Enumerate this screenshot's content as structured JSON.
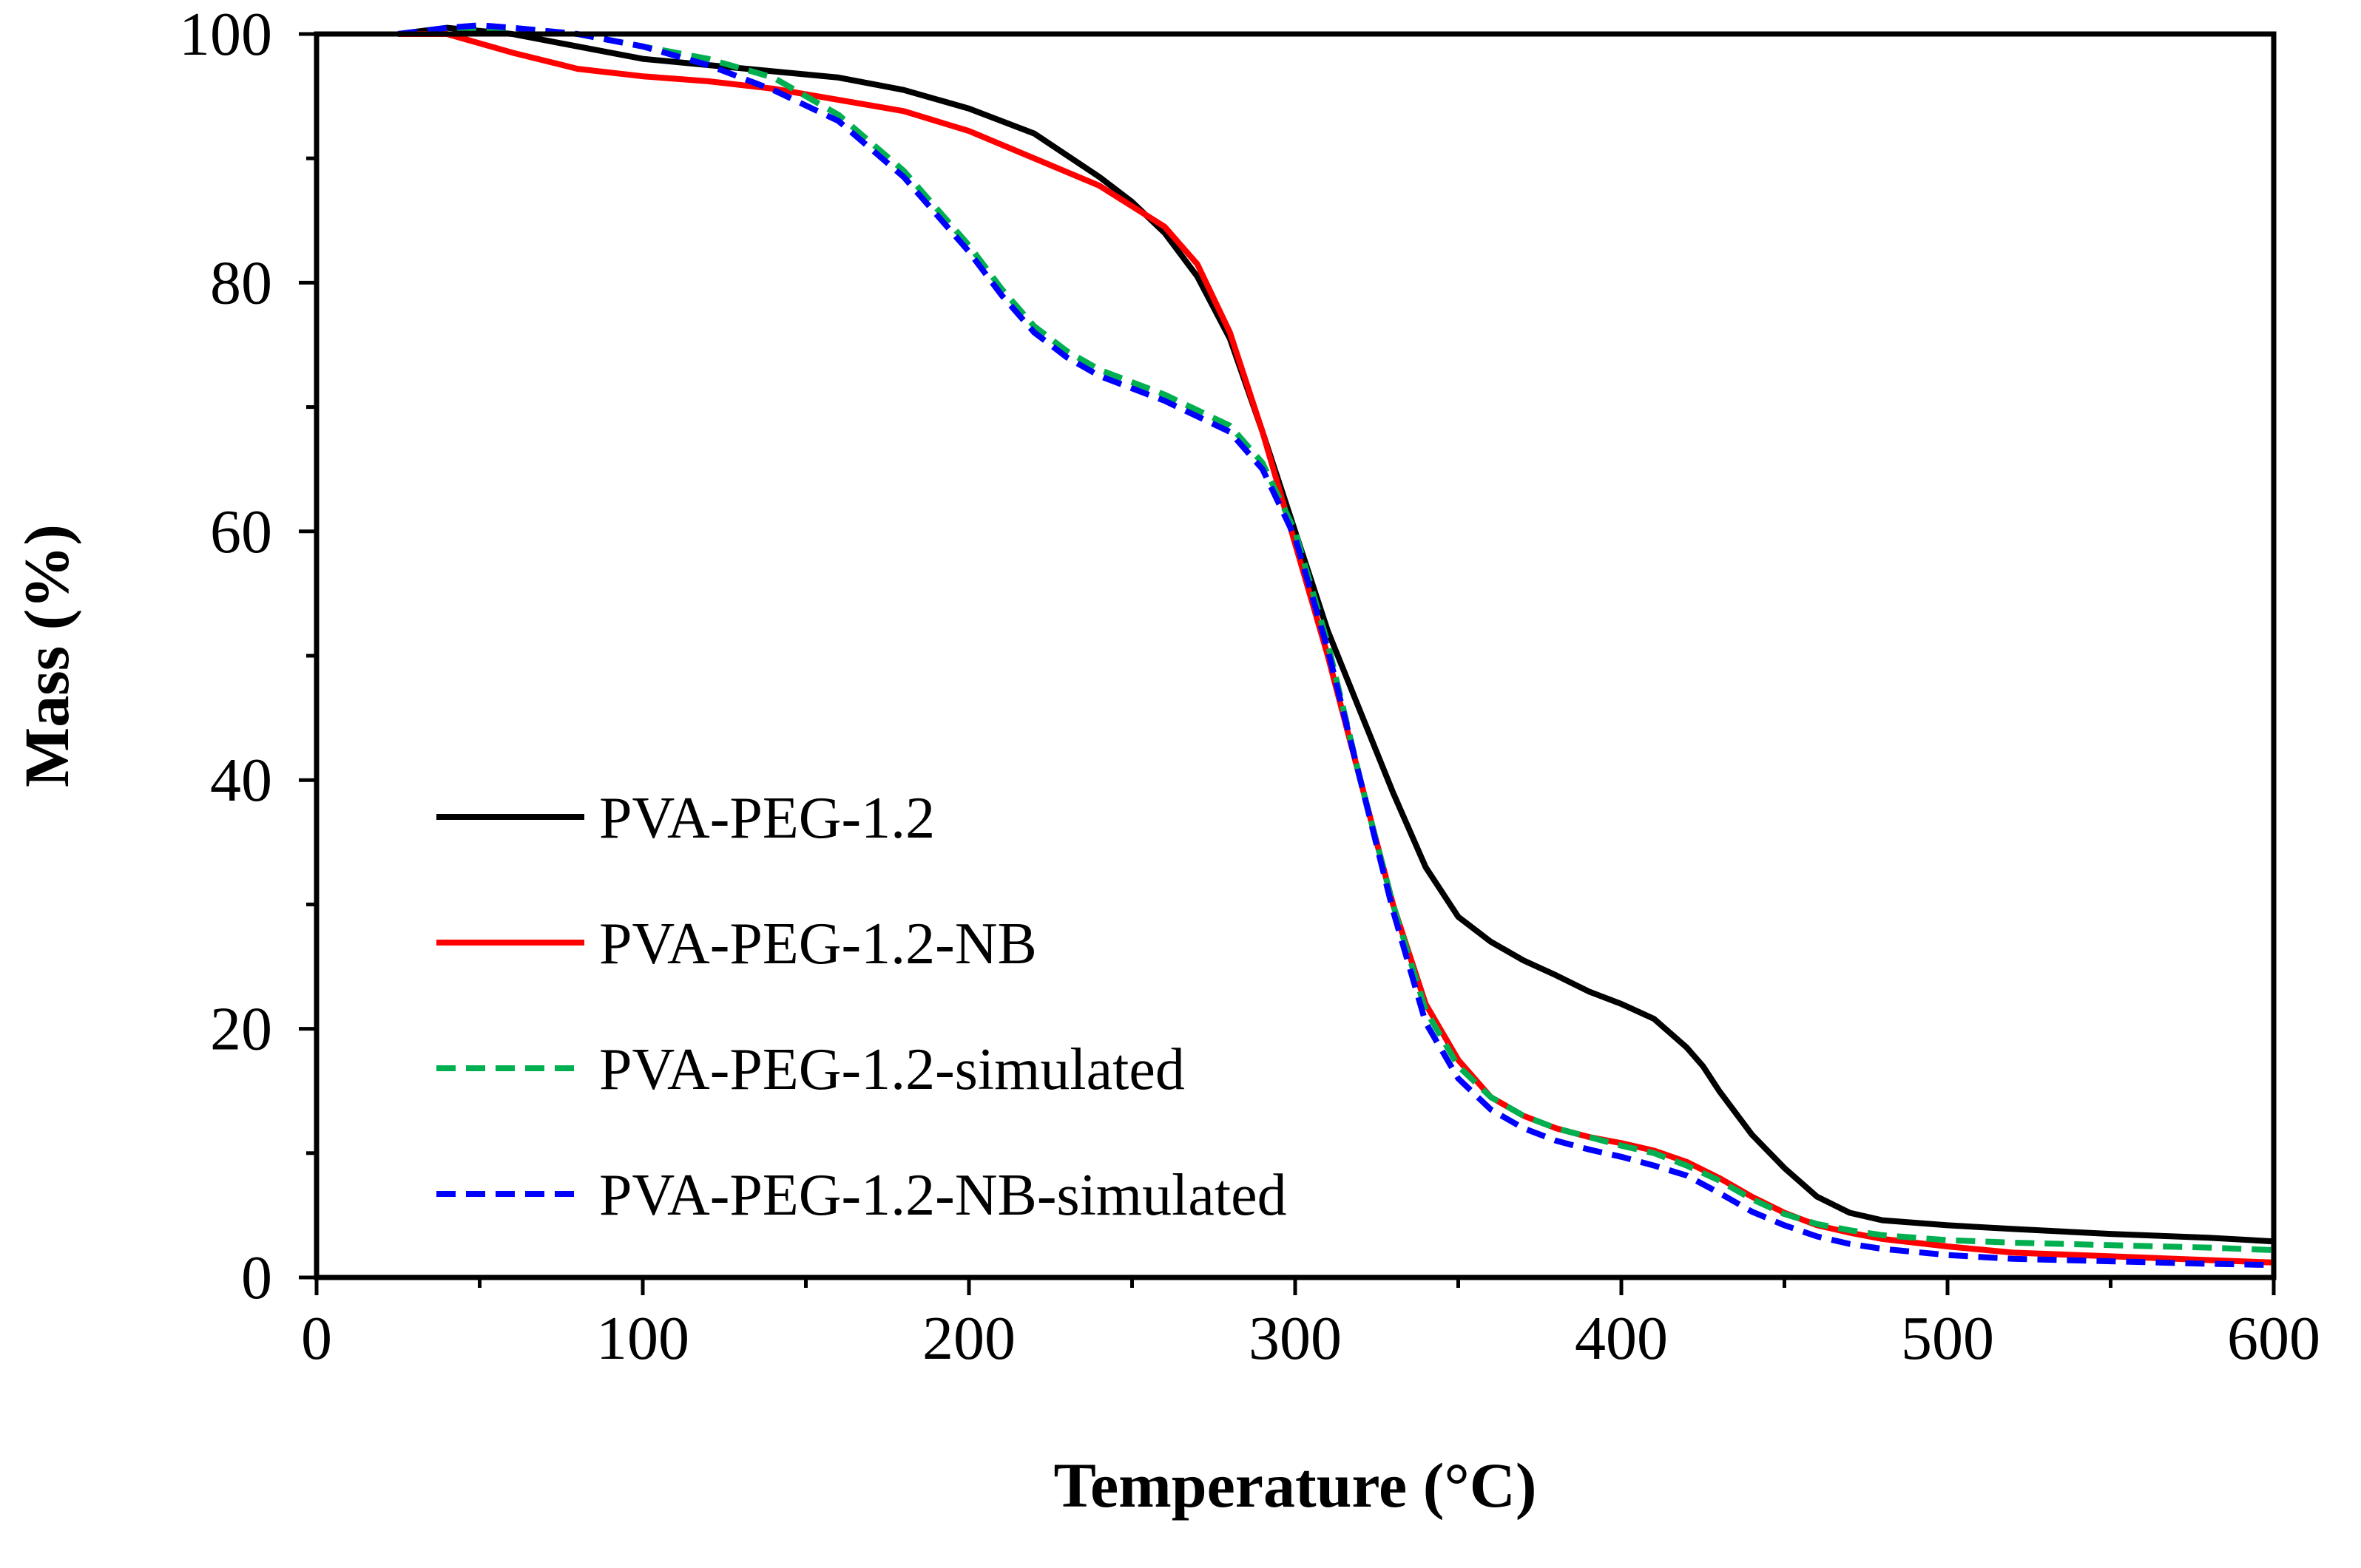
{
  "chart_data": {
    "type": "line",
    "title": "",
    "xlabel": "Temperature (°C)",
    "ylabel": "Mass (%)",
    "xlim": [
      0,
      600
    ],
    "ylim": [
      0,
      100
    ],
    "xticks": [
      0,
      100,
      200,
      300,
      400,
      500,
      600
    ],
    "yticks": [
      0,
      20,
      40,
      60,
      80,
      100
    ],
    "xticks_labels": [
      "0",
      "100",
      "200",
      "300",
      "400",
      "500",
      "600"
    ],
    "yticks_labels": [
      "0",
      "20",
      "40",
      "60",
      "80",
      "100"
    ],
    "grid": false,
    "legend_position": "lower-left",
    "series": [
      {
        "name": "PVA-PEG-1.2",
        "color": "#000000",
        "style": "solid",
        "x": [
          25,
          40,
          60,
          80,
          100,
          120,
          140,
          160,
          180,
          200,
          220,
          240,
          250,
          260,
          270,
          280,
          290,
          300,
          310,
          320,
          330,
          340,
          350,
          360,
          370,
          380,
          390,
          400,
          410,
          420,
          425,
          430,
          440,
          450,
          460,
          470,
          480,
          500,
          520,
          550,
          580,
          600
        ],
        "y": [
          100,
          100.5,
          100,
          99,
          98,
          97.5,
          97,
          96.5,
          95.5,
          94,
          92,
          88.5,
          86.5,
          84,
          80.5,
          75.5,
          68,
          60,
          52,
          45.5,
          39,
          33,
          29,
          27,
          25.5,
          24.3,
          23,
          22,
          20.8,
          18.5,
          17,
          15,
          11.5,
          8.8,
          6.5,
          5.2,
          4.6,
          4.2,
          3.9,
          3.5,
          3.2,
          2.9
        ]
      },
      {
        "name": "PVA-PEG-1.2-NB",
        "color": "#ff0000",
        "style": "solid",
        "x": [
          25,
          40,
          60,
          80,
          100,
          120,
          140,
          160,
          180,
          200,
          220,
          240,
          260,
          270,
          280,
          290,
          300,
          310,
          320,
          330,
          340,
          350,
          360,
          370,
          380,
          390,
          400,
          410,
          420,
          430,
          440,
          450,
          460,
          470,
          480,
          500,
          520,
          550,
          580,
          600
        ],
        "y": [
          100,
          100,
          98.5,
          97.2,
          96.6,
          96.2,
          95.6,
          94.7,
          93.8,
          92.2,
          90,
          87.8,
          84.5,
          81.5,
          76,
          68,
          59,
          50,
          40,
          30,
          22,
          17.5,
          14.5,
          13,
          12,
          11.3,
          10.8,
          10.2,
          9.3,
          8,
          6.5,
          5.2,
          4.2,
          3.6,
          3.1,
          2.5,
          2,
          1.7,
          1.4,
          1.2
        ]
      },
      {
        "name": "PVA-PEG-1.2-simulated",
        "color": "#00b050",
        "style": "dashed",
        "x": [
          25,
          40,
          60,
          80,
          100,
          120,
          140,
          160,
          180,
          200,
          210,
          220,
          230,
          240,
          260,
          280,
          290,
          300,
          310,
          320,
          330,
          340,
          350,
          360,
          370,
          380,
          390,
          400,
          410,
          420,
          430,
          440,
          450,
          460,
          470,
          480,
          500,
          520,
          550,
          580,
          600
        ],
        "y": [
          100,
          100.5,
          100.5,
          100,
          99,
          98,
          96.5,
          93.5,
          89,
          83,
          79.5,
          76.5,
          74.5,
          73,
          71,
          68.5,
          65.5,
          60,
          51,
          40,
          30,
          21.5,
          17,
          14.5,
          13,
          12,
          11.3,
          10.6,
          10,
          9,
          7.8,
          6.3,
          5.1,
          4.3,
          3.8,
          3.4,
          3,
          2.8,
          2.6,
          2.4,
          2.2
        ]
      },
      {
        "name": "PVA-PEG-1.2-NB-simulated",
        "color": "#0000ff",
        "style": "dashed",
        "x": [
          25,
          40,
          50,
          60,
          80,
          100,
          120,
          140,
          160,
          180,
          200,
          210,
          220,
          230,
          240,
          260,
          280,
          290,
          300,
          310,
          320,
          330,
          340,
          350,
          360,
          370,
          380,
          390,
          400,
          410,
          420,
          430,
          440,
          450,
          460,
          470,
          480,
          500,
          520,
          550,
          580,
          600
        ],
        "y": [
          100,
          100.5,
          100.7,
          100.5,
          100,
          99,
          97.5,
          95.5,
          93,
          88.5,
          82.5,
          79,
          76,
          74,
          72.5,
          70.5,
          68,
          65,
          59.5,
          50.5,
          40,
          29.5,
          20.5,
          16,
          13.5,
          12,
          11,
          10.3,
          9.7,
          9,
          8.2,
          6.8,
          5.3,
          4.2,
          3.3,
          2.7,
          2.3,
          1.8,
          1.5,
          1.3,
          1.1,
          1
        ]
      }
    ]
  }
}
